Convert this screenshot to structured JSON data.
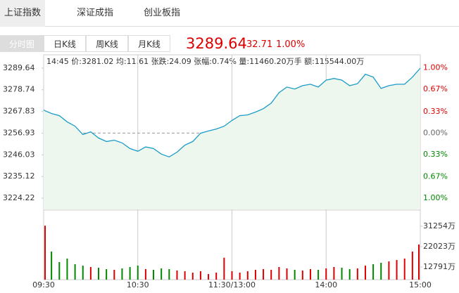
{
  "tabs": [
    "上证指数",
    "深证成指",
    "创业板指"
  ],
  "views": [
    "分时图",
    "日K线",
    "周K线",
    "月K线"
  ],
  "quote": {
    "price": "3289.64",
    "change": "32.71",
    "pct": "1.00%"
  },
  "info": "14:45 价:3281.02 均:11.61 张跌:24.09 张幅:0.74% 量:11460.20万手 额:115544.00万",
  "chart_data": [
    {
      "type": "line",
      "color": "#1a9cc9",
      "fill": "#eef7ee",
      "x": [
        0,
        5,
        10,
        15,
        20,
        25,
        30,
        35,
        40,
        45,
        50,
        55,
        60,
        65,
        70,
        75,
        80,
        85,
        90,
        95,
        100,
        105,
        110,
        115,
        120,
        125,
        130,
        135,
        140,
        145,
        150,
        155,
        160,
        165,
        170,
        175,
        180,
        185,
        190,
        195,
        200,
        205,
        210,
        215,
        220,
        225,
        230,
        235,
        240
      ],
      "values": [
        3268.5,
        3266.8,
        3265.7,
        3262.6,
        3260.4,
        3256.2,
        3257.6,
        3254.5,
        3252.7,
        3253.4,
        3252.0,
        3249.2,
        3247.8,
        3250.0,
        3249.2,
        3246.4,
        3245.0,
        3247.4,
        3250.9,
        3252.7,
        3256.9,
        3258.0,
        3259.0,
        3260.4,
        3263.3,
        3265.7,
        3266.1,
        3267.5,
        3269.2,
        3272.0,
        3277.3,
        3280.1,
        3279.1,
        3280.8,
        3281.5,
        3280.1,
        3283.6,
        3284.4,
        3283.6,
        3280.8,
        3281.8,
        3286.5,
        3285.1,
        3279.4,
        3280.8,
        3281.5,
        3281.5,
        3285.1,
        3289.6
      ],
      "xlim": [
        0,
        240
      ],
      "ylim": [
        3218.6,
        3296.3
      ],
      "yticks": [
        3289.64,
        3278.74,
        3267.83,
        3256.93,
        3246.03,
        3235.12,
        3224.22
      ],
      "y2lim": [
        -1.17,
        1.2
      ],
      "y2ticks": [
        {
          "value": 1,
          "label": "1.00%"
        },
        {
          "value": 0.67,
          "label": "0.67%"
        },
        {
          "value": 0.33,
          "label": "0.33%"
        },
        {
          "value": 0,
          "label": "0.00%"
        },
        {
          "value": -0.33,
          "label": "0.33%"
        },
        {
          "value": -0.67,
          "label": "0.67%"
        },
        {
          "value": -1,
          "label": "1.00%"
        }
      ]
    },
    {
      "type": "bar",
      "x": [
        0,
        5,
        10,
        15,
        20,
        25,
        30,
        35,
        40,
        45,
        50,
        55,
        60,
        65,
        70,
        75,
        80,
        85,
        90,
        95,
        100,
        105,
        110,
        115,
        120,
        125,
        130,
        135,
        140,
        145,
        150,
        155,
        160,
        165,
        170,
        175,
        180,
        185,
        190,
        195,
        200,
        205,
        210,
        215,
        220,
        225,
        230,
        235,
        240
      ],
      "values": [
        31500,
        19780,
        15010,
        16600,
        14056,
        13420,
        12784,
        12466,
        11830,
        11512,
        12148,
        12784,
        13420,
        11830,
        11512,
        12148,
        11830,
        11194,
        10876,
        10240,
        10876,
        9604,
        10240,
        17000,
        10876,
        10240,
        10876,
        11512,
        11830,
        11512,
        12784,
        12148,
        11512,
        11194,
        11830,
        11512,
        12148,
        12784,
        12466,
        11830,
        12148,
        13420,
        14056,
        14692,
        15328,
        15964,
        16600,
        19780,
        22960
      ],
      "xlim": [
        0,
        240
      ],
      "ylim": [
        7060,
        38250
      ],
      "yticks": [
        {
          "value": 31254,
          "label": "31254万"
        },
        {
          "value": 22023,
          "label": "22023万"
        },
        {
          "value": 12791,
          "label": "12791万"
        }
      ],
      "xticks": [
        {
          "value": 0,
          "label": "09:30"
        },
        {
          "value": 60,
          "label": "10:30"
        },
        {
          "value": 120,
          "label": "11:30/13:00"
        },
        {
          "value": 180,
          "label": "14:00"
        },
        {
          "value": 240,
          "label": "15:00"
        }
      ]
    }
  ]
}
